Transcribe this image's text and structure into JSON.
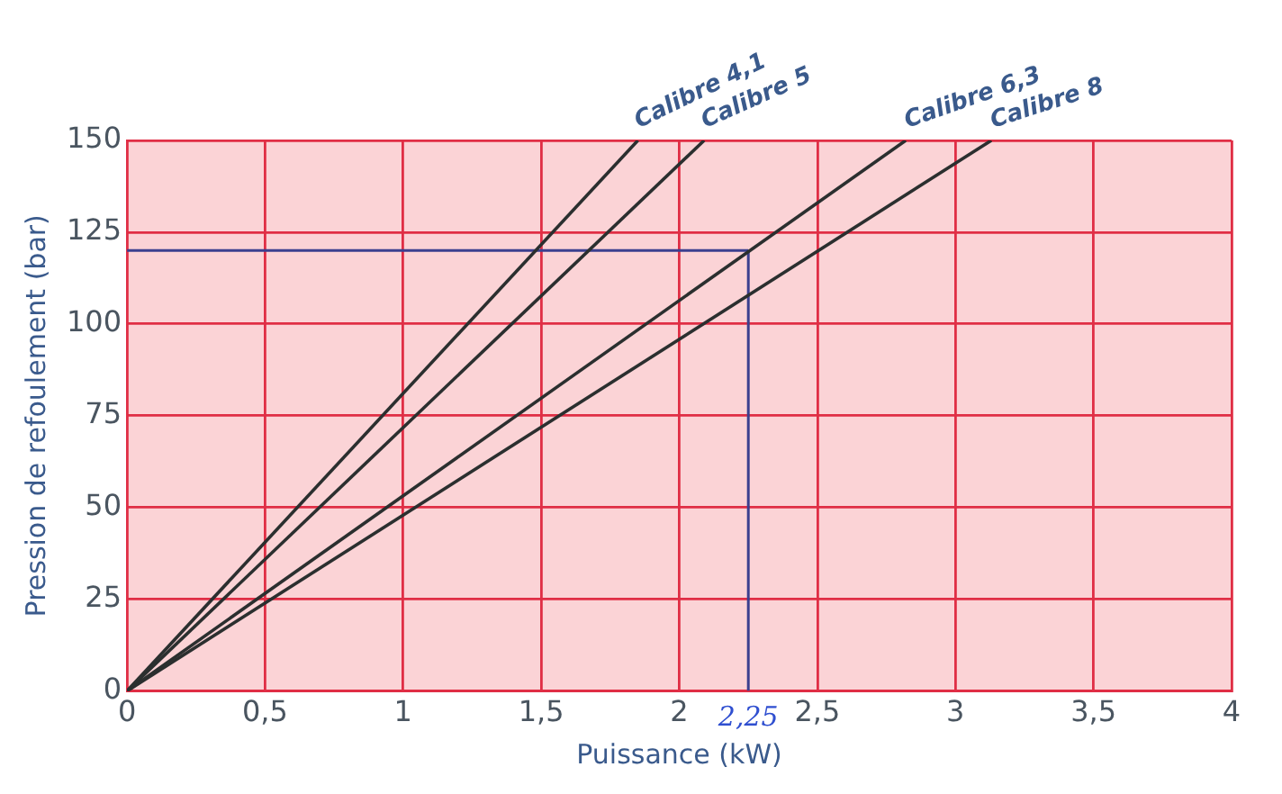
{
  "chart_data": {
    "type": "line",
    "xlabel": "Puissance (kW)",
    "ylabel": "Pression de refoulement (bar)",
    "series": [
      {
        "name": "Calibre 4,1",
        "color": "#2b2f2f",
        "x": [
          0,
          1.85
        ],
        "values": [
          0,
          150
        ]
      },
      {
        "name": "Calibre 5",
        "color": "#2b2f2f",
        "x": [
          0,
          2.09
        ],
        "values": [
          0,
          150
        ]
      },
      {
        "name": "Calibre 6,3",
        "color": "#2b2f2f",
        "x": [
          0,
          2.82
        ],
        "values": [
          0,
          150
        ]
      },
      {
        "name": "Calibre 8",
        "color": "#2b2f2f",
        "x": [
          0,
          3.13
        ],
        "values": [
          0,
          150
        ]
      },
      {
        "color": "#3b3f8f",
        "x": [
          0,
          2.25
        ],
        "values": [
          120,
          120
        ]
      },
      {
        "color": "#3b3f8f",
        "x": [
          2.25,
          2.25
        ],
        "values": [
          0,
          120
        ]
      }
    ],
    "annotations": [
      {
        "text": "2,25",
        "x": 2.25,
        "y": 0
      }
    ],
    "xlim": [
      0,
      4
    ],
    "ylim": [
      0,
      150
    ],
    "xticks": [
      0,
      {
        "value": 0.5,
        "label": "0,5"
      },
      1,
      {
        "value": 1.5,
        "label": "1,5"
      },
      2,
      {
        "value": 2.5,
        "label": "2,5"
      },
      3,
      {
        "value": 3.5,
        "label": "3,5"
      },
      4
    ],
    "yticks": [
      0,
      25,
      50,
      75,
      100,
      125,
      150
    ],
    "grid": true,
    "legend": false,
    "marker": "none",
    "line_style": "solid"
  }
}
